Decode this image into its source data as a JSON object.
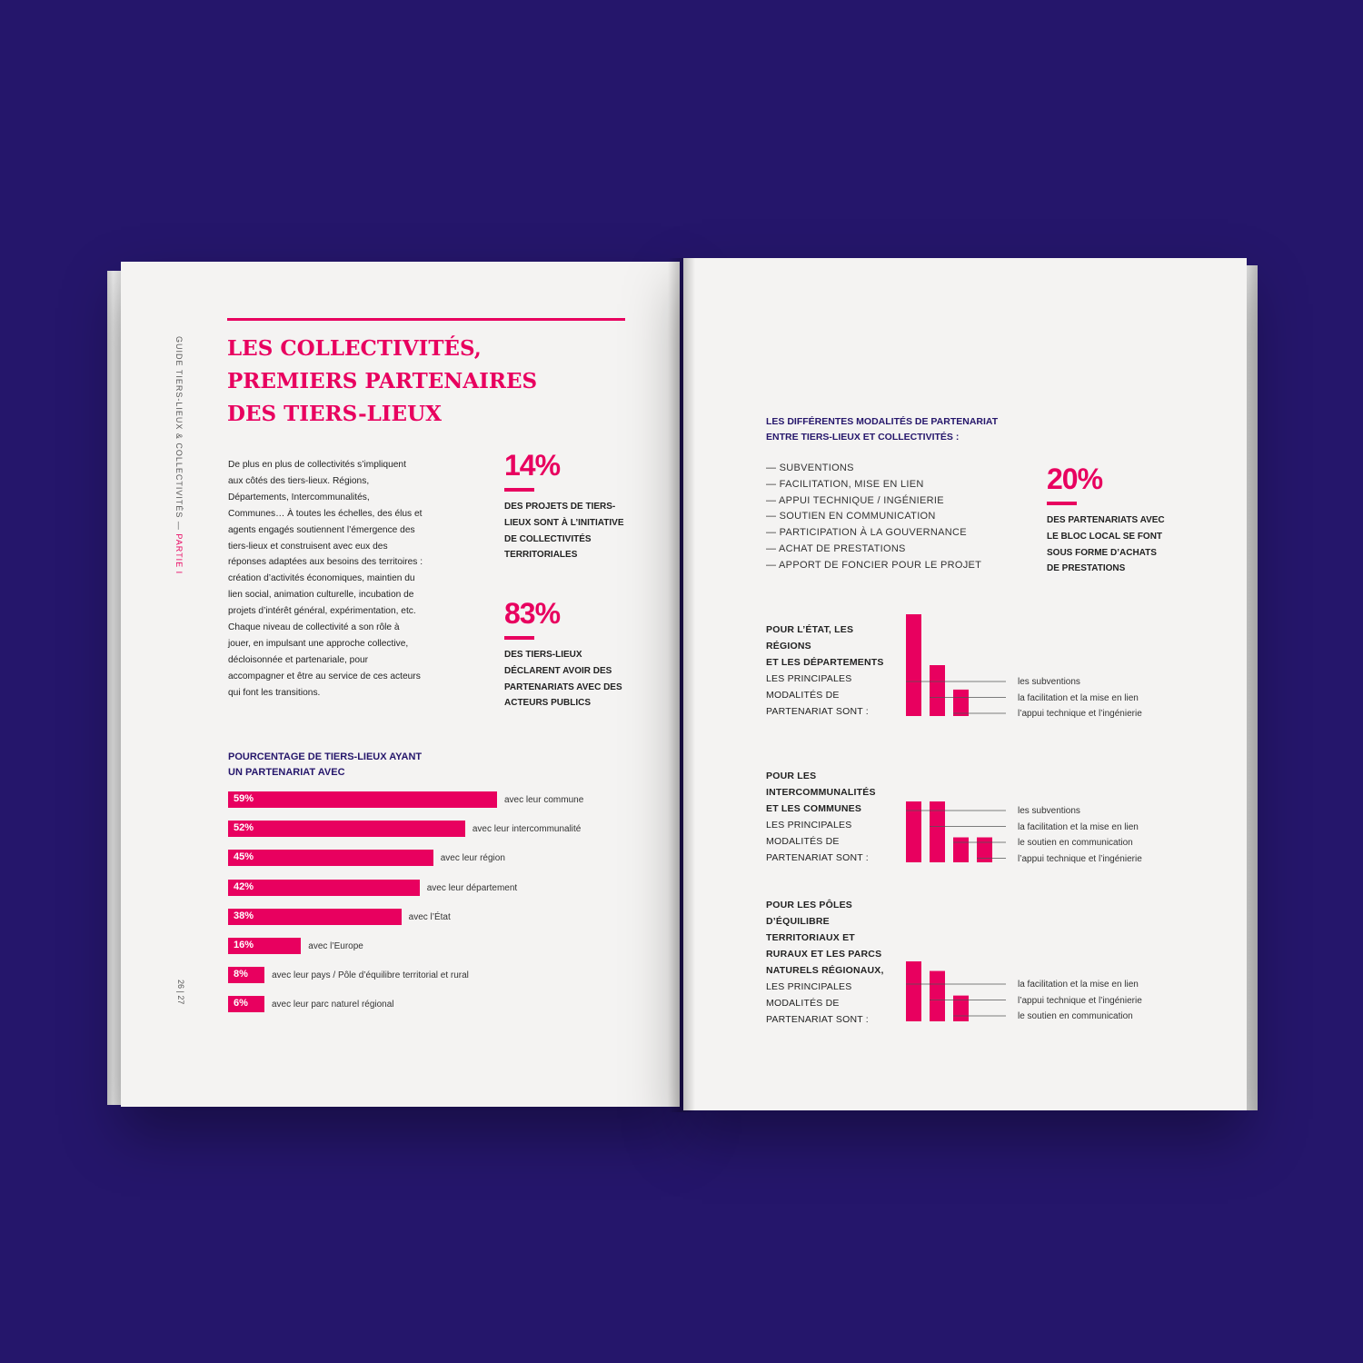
{
  "colors": {
    "background": "#25166b",
    "accent": "#e8005f",
    "navy": "#25166b"
  },
  "left": {
    "side_label": "GUIDE TIERS-LIEUX & COLLECTIVITÉS —",
    "side_label_part": "PARTIE I",
    "page_numbers": "26 | 27",
    "title_lines": [
      "LES COLLECTIVITÉS,",
      "PREMIERS PARTENAIRES",
      "DES TIERS-LIEUX"
    ],
    "intro_text": "De plus en plus de collectivités s’impliquent aux côtés des tiers-lieux. Régions, Départements, Intercommunalités, Communes… À toutes les échelles, des élus et agents engagés soutiennent l’émergence des tiers-lieux et construisent avec eux des réponses adaptées aux besoins des territoires : création d’activités économiques, maintien du lien social, animation culturelle, incubation de projets d’intérêt général, expérimentation, etc. Chaque niveau de collectivité a son rôle à jouer, en impulsant une approche collective, décloisonnée et partenariale, pour accompagner et être au service de ces acteurs qui font les transitions.",
    "stats": [
      {
        "value": "14%",
        "lines": [
          "DES PROJETS DE TIERS-",
          "LIEUX SONT À L’INITIATIVE",
          "DE COLLECTIVITÉS",
          "TERRITORIALES"
        ]
      },
      {
        "value": "83%",
        "lines": [
          "DES TIERS-LIEUX",
          "DÉCLARENT AVOIR DES",
          "PARTENARIATS AVEC DES",
          "ACTEURS PUBLICS"
        ]
      }
    ],
    "chart_title_lines": [
      "POURCENTAGE DE TIERS-LIEUX AYANT",
      "UN PARTENARIAT AVEC"
    ]
  },
  "chart_data": {
    "type": "bar",
    "title": "POURCENTAGE DE TIERS-LIEUX AYANT UN PARTENARIAT AVEC",
    "orientation": "horizontal",
    "categories": [
      "avec leur commune",
      "avec leur intercommunalité",
      "avec leur région",
      "avec leur département",
      "avec l’État",
      "avec l’Europe",
      "avec leur pays / Pôle d’équilibre territorial et rural",
      "avec leur parc naturel régional"
    ],
    "values": [
      59,
      52,
      45,
      42,
      38,
      16,
      8,
      6
    ],
    "value_labels": [
      "59%",
      "52%",
      "45%",
      "42%",
      "38%",
      "16%",
      "8%",
      "6%"
    ],
    "unit": "%"
  },
  "right": {
    "heading_lines": [
      "LES DIFFÉRENTES MODALITÉS DE PARTENARIAT",
      "ENTRE TIERS-LIEUX ET COLLECTIVITÉS :"
    ],
    "modalities": [
      "— SUBVENTIONS",
      "— FACILITATION, MISE EN LIEN",
      "— APPUI TECHNIQUE / INGÉNIERIE",
      "— SOUTIEN EN COMMUNICATION",
      "— PARTICIPATION À LA GOUVERNANCE",
      "— ACHAT DE PRESTATIONS",
      "— APPORT DE FONCIER POUR LE PROJET"
    ],
    "stat": {
      "value": "20%",
      "lines": [
        "DES PARTENARIATS AVEC",
        "LE BLOC LOCAL SE FONT",
        "SOUS FORME D’ACHATS",
        "DE PRESTATIONS"
      ]
    },
    "groups": [
      {
        "bold_lines": [
          "POUR L’ÉTAT, LES",
          "RÉGIONS",
          "ET LES DÉPARTEMENTS"
        ],
        "normal_lines": [
          "LES PRINCIPALES",
          "MODALITÉS DE",
          "PARTENARIAT SONT :"
        ],
        "labels": [
          "les subventions",
          "la facilitation et la mise en lien",
          "l’appui technique et l’ingénierie"
        ],
        "levels": [
          1.0,
          0.5,
          0.26
        ]
      },
      {
        "bold_lines": [
          "POUR LES",
          "INTERCOMMUNALITÉS",
          "ET LES COMMUNES"
        ],
        "normal_lines": [
          "LES PRINCIPALES",
          "MODALITÉS DE",
          "PARTENARIAT SONT :"
        ],
        "labels": [
          "les subventions",
          "la facilitation et la mise en lien",
          "le soutien en communication",
          "l’appui technique et l’ingénierie"
        ],
        "levels": [
          1.0,
          1.0,
          0.41,
          0.41
        ]
      },
      {
        "bold_lines": [
          "POUR LES PÔLES",
          "D’ÉQUILIBRE",
          "TERRITORIAUX ET",
          "RURAUX ET LES PARCS",
          "NATURELS RÉGIONAUX,"
        ],
        "normal_lines": [
          "LES PRINCIPALES",
          "MODALITÉS DE",
          "PARTENARIAT SONT :"
        ],
        "labels": [
          "la facilitation et la mise en lien",
          "l’appui technique et l’ingénierie",
          "le soutien en communication"
        ],
        "levels": [
          1.0,
          0.84,
          0.43
        ]
      }
    ]
  }
}
